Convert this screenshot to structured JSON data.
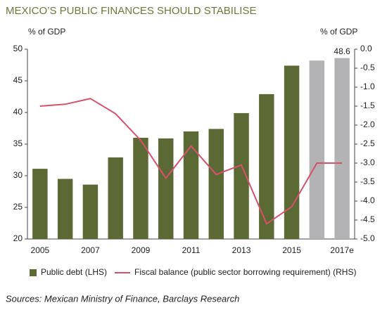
{
  "chart_data": {
    "type": "bar_line",
    "title": "MEXICO’S PUBLIC FINANCES SHOULD STABILISE",
    "ylabel": "% of GDP",
    "y2label": "% of GDP",
    "source": "Sources: Mexican Ministry of Finance, Barclays Research",
    "categories": [
      "2005",
      null,
      "2007",
      null,
      "2009",
      null,
      "2011",
      null,
      "2013",
      null,
      "2015",
      null,
      "2017e"
    ],
    "ylim": [
      20,
      50
    ],
    "yticks": [
      20,
      25,
      30,
      35,
      40,
      45,
      50
    ],
    "y2lim": [
      -5,
      0
    ],
    "y2ticks": [
      {
        "value": 0,
        "label": "0.0"
      },
      {
        "value": -0.5,
        "label": "-0.5"
      },
      {
        "value": -1,
        "label": "-1.0"
      },
      {
        "value": -1.5,
        "label": "-1.5"
      },
      {
        "value": -2,
        "label": "-2.0"
      },
      {
        "value": -2.5,
        "label": "-2.5"
      },
      {
        "value": -3,
        "label": "-3.0"
      },
      {
        "value": -3.5,
        "label": "-3.5"
      },
      {
        "value": -4,
        "label": "-4.0"
      },
      {
        "value": -4.5,
        "label": "-4.5"
      },
      {
        "value": -5,
        "label": "-5.0"
      }
    ],
    "series": [
      {
        "name": "Public debt (LHS)",
        "type": "bar",
        "color": "#5b6a34",
        "bar_colors": [
          "#5b6a34",
          "#5b6a34",
          "#5b6a34",
          "#5b6a34",
          "#5b6a34",
          "#5b6a34",
          "#5b6a34",
          "#5b6a34",
          "#5b6a34",
          "#5b6a34",
          "#5b6a34",
          "#b3b3b5",
          "#b3b3b5"
        ],
        "values": [
          31.1,
          29.5,
          28.6,
          32.9,
          36.0,
          35.9,
          37.0,
          37.4,
          39.9,
          42.9,
          47.4,
          48.2,
          48.6
        ],
        "value_labels": [
          null,
          null,
          null,
          null,
          null,
          null,
          null,
          null,
          null,
          null,
          null,
          null,
          "48.6"
        ]
      },
      {
        "name": "Fiscal balance (public sector borrowing requirement) (RHS)",
        "type": "line",
        "axis": "y2",
        "color": "#d9506b",
        "values": [
          -1.5,
          -1.45,
          -1.3,
          -1.7,
          -2.4,
          -3.4,
          -2.55,
          -3.3,
          -3.05,
          -4.6,
          -4.15,
          -3.0,
          -3.0
        ]
      }
    ]
  }
}
